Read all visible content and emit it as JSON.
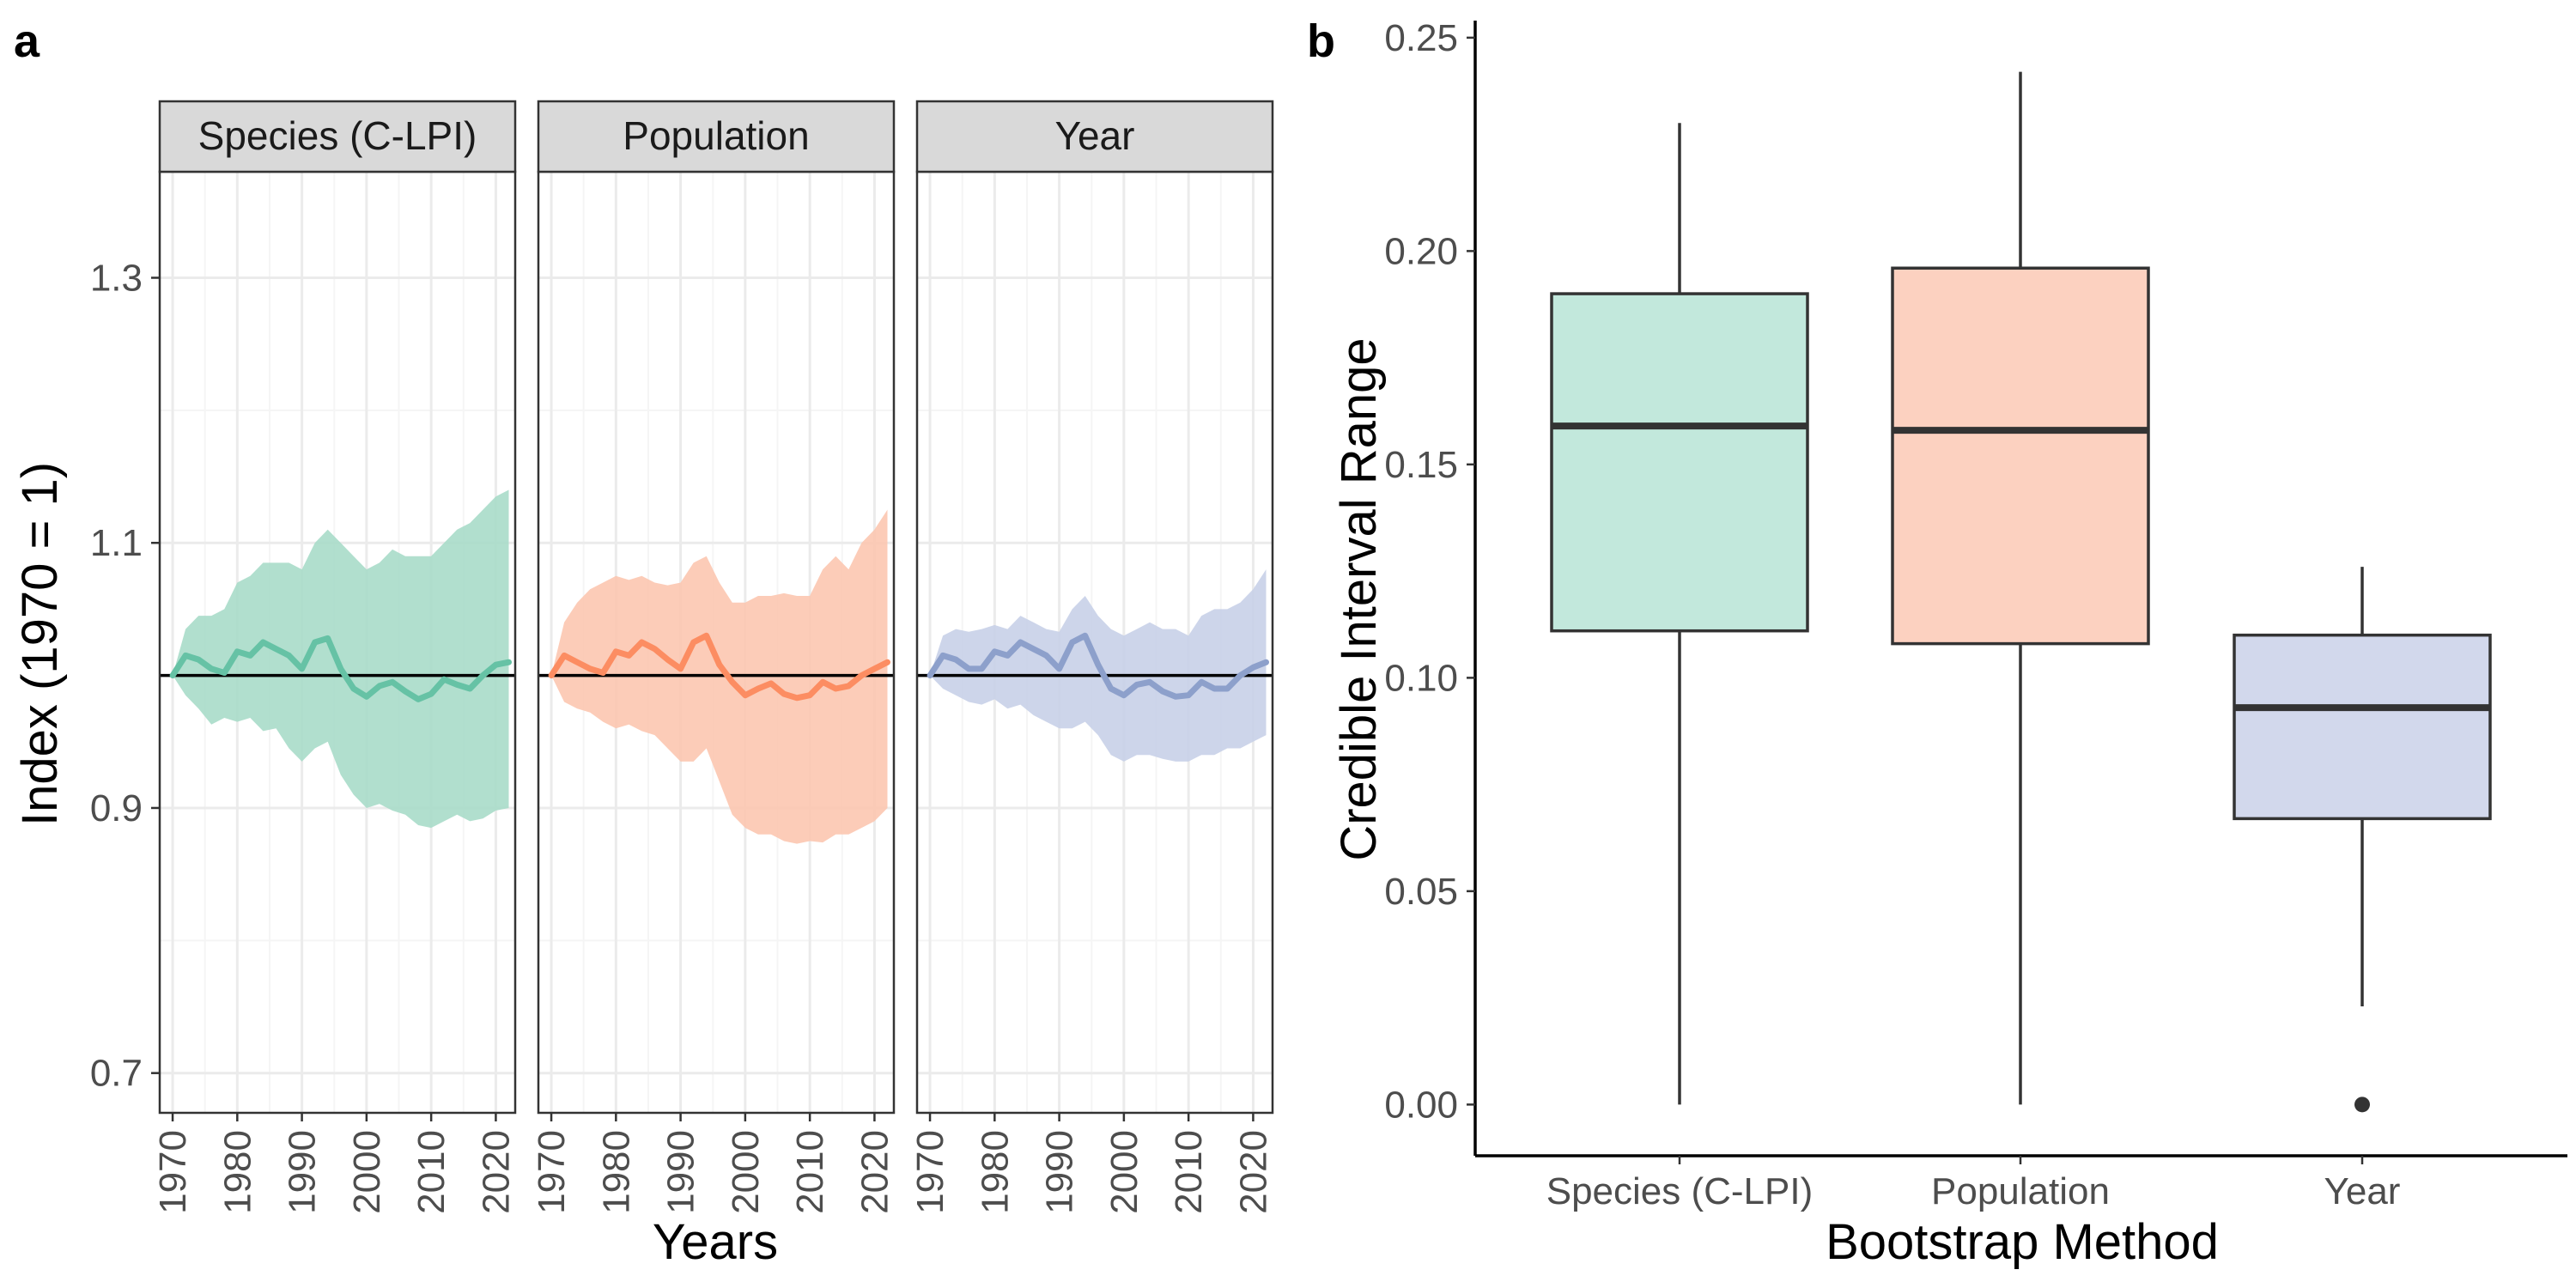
{
  "figure": {
    "panel_a_tag": "a",
    "panel_b_tag": "b"
  },
  "chart_data": [
    {
      "type": "line",
      "facets": [
        "Species (C-LPI)",
        "Population",
        "Year"
      ],
      "xlabel": "Years",
      "ylabel": "Index (1970 = 1)",
      "xlim": [
        1968,
        2023
      ],
      "ylim": [
        0.67,
        1.38
      ],
      "x_ticks": [
        1970,
        1980,
        1990,
        2000,
        2010,
        2020
      ],
      "y_ticks": [
        0.7,
        0.9,
        1.1,
        1.3
      ],
      "y_tick_labels": [
        "0.7",
        "0.9",
        "1.1",
        "1.3"
      ],
      "reference_line": 1.0,
      "grid": true,
      "x": [
        1970,
        1972,
        1974,
        1976,
        1978,
        1980,
        1982,
        1984,
        1986,
        1988,
        1990,
        1992,
        1994,
        1996,
        1998,
        2000,
        2002,
        2004,
        2006,
        2008,
        2010,
        2012,
        2014,
        2016,
        2018,
        2020,
        2022
      ],
      "series": [
        {
          "facet": "Species (C-LPI)",
          "color": "#66c2a5",
          "ribbon_color": "#a8dcc9",
          "values": [
            1.0,
            1.015,
            1.012,
            1.005,
            1.002,
            1.018,
            1.015,
            1.025,
            1.02,
            1.015,
            1.005,
            1.025,
            1.028,
            1.005,
            0.99,
            0.984,
            0.992,
            0.995,
            0.988,
            0.982,
            0.986,
            0.997,
            0.993,
            0.99,
            1.0,
            1.008,
            1.01
          ],
          "lower": [
            1.0,
            0.985,
            0.975,
            0.963,
            0.968,
            0.965,
            0.968,
            0.958,
            0.96,
            0.945,
            0.935,
            0.945,
            0.95,
            0.925,
            0.91,
            0.9,
            0.903,
            0.898,
            0.895,
            0.887,
            0.885,
            0.89,
            0.895,
            0.89,
            0.892,
            0.898,
            0.9
          ],
          "upper": [
            1.0,
            1.035,
            1.045,
            1.045,
            1.05,
            1.07,
            1.075,
            1.085,
            1.085,
            1.085,
            1.08,
            1.1,
            1.11,
            1.1,
            1.09,
            1.08,
            1.085,
            1.095,
            1.09,
            1.09,
            1.09,
            1.1,
            1.11,
            1.115,
            1.125,
            1.135,
            1.14
          ]
        },
        {
          "facet": "Population",
          "color": "#fc8d62",
          "ribbon_color": "#fcc7b0",
          "values": [
            1.0,
            1.015,
            1.01,
            1.005,
            1.002,
            1.018,
            1.015,
            1.025,
            1.02,
            1.012,
            1.005,
            1.025,
            1.03,
            1.008,
            0.995,
            0.985,
            0.99,
            0.994,
            0.986,
            0.983,
            0.985,
            0.995,
            0.99,
            0.992,
            1.0,
            1.005,
            1.01
          ],
          "lower": [
            1.0,
            0.98,
            0.975,
            0.972,
            0.965,
            0.96,
            0.963,
            0.958,
            0.955,
            0.945,
            0.935,
            0.935,
            0.945,
            0.92,
            0.895,
            0.885,
            0.88,
            0.88,
            0.875,
            0.873,
            0.875,
            0.874,
            0.88,
            0.88,
            0.885,
            0.89,
            0.9
          ],
          "upper": [
            1.0,
            1.04,
            1.055,
            1.065,
            1.07,
            1.075,
            1.072,
            1.075,
            1.07,
            1.068,
            1.07,
            1.085,
            1.09,
            1.07,
            1.055,
            1.055,
            1.06,
            1.06,
            1.062,
            1.06,
            1.06,
            1.08,
            1.09,
            1.08,
            1.1,
            1.11,
            1.125
          ]
        },
        {
          "facet": "Year",
          "color": "#8da0cb",
          "ribbon_color": "#c8d0e8",
          "values": [
            1.0,
            1.015,
            1.012,
            1.005,
            1.005,
            1.018,
            1.015,
            1.025,
            1.02,
            1.015,
            1.005,
            1.025,
            1.03,
            1.008,
            0.99,
            0.985,
            0.993,
            0.995,
            0.988,
            0.984,
            0.985,
            0.995,
            0.99,
            0.99,
            1.0,
            1.006,
            1.01
          ],
          "lower": [
            1.0,
            0.99,
            0.985,
            0.98,
            0.978,
            0.982,
            0.975,
            0.978,
            0.97,
            0.965,
            0.96,
            0.96,
            0.965,
            0.955,
            0.94,
            0.935,
            0.94,
            0.94,
            0.937,
            0.935,
            0.935,
            0.94,
            0.94,
            0.945,
            0.945,
            0.95,
            0.955
          ],
          "upper": [
            1.0,
            1.03,
            1.035,
            1.033,
            1.035,
            1.038,
            1.035,
            1.045,
            1.04,
            1.035,
            1.033,
            1.05,
            1.06,
            1.045,
            1.035,
            1.03,
            1.035,
            1.04,
            1.035,
            1.035,
            1.03,
            1.045,
            1.05,
            1.05,
            1.055,
            1.065,
            1.08
          ]
        }
      ]
    },
    {
      "type": "box",
      "xlabel": "Bootstrap Method",
      "ylabel": "Credible Interval Range",
      "ylim": [
        -0.012,
        0.254
      ],
      "y_ticks": [
        0.0,
        0.05,
        0.1,
        0.15,
        0.2,
        0.25
      ],
      "y_tick_labels": [
        "0.00",
        "0.05",
        "0.10",
        "0.15",
        "0.20",
        "0.25"
      ],
      "grid": false,
      "categories": [
        "Species (C-LPI)",
        "Population",
        "Year"
      ],
      "boxes": [
        {
          "category": "Species (C-LPI)",
          "min": 0.0,
          "q1": 0.111,
          "median": 0.159,
          "q3": 0.19,
          "max": 0.23,
          "outliers": [],
          "fill": "#c2e8dc"
        },
        {
          "category": "Population",
          "min": 0.0,
          "q1": 0.108,
          "median": 0.158,
          "q3": 0.196,
          "max": 0.242,
          "outliers": [],
          "fill": "#fcd1c0"
        },
        {
          "category": "Year",
          "min": 0.023,
          "q1": 0.067,
          "median": 0.093,
          "q3": 0.11,
          "max": 0.126,
          "outliers": [
            0.0
          ],
          "fill": "#d2d8ec"
        }
      ]
    }
  ]
}
